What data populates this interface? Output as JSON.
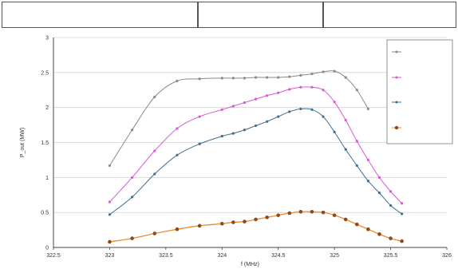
{
  "notes": {
    "left": "",
    "middle": "",
    "right": ""
  },
  "colors": {
    "s1": "#8a8a8a",
    "s2": "#d65ad6",
    "s3": "#3f6f8f",
    "s4": "#8b4a1f",
    "s4_line": "#f08a2a",
    "grid": "#d2d2d2",
    "axis": "#444444",
    "background": "#ffffff"
  },
  "chart_data": {
    "type": "line",
    "xlabel": "f (MHz)",
    "ylabel": "P_out (MW)",
    "xlim": [
      322.5,
      326
    ],
    "ylim": [
      0,
      3
    ],
    "xticks": [
      "322.5",
      "323",
      "323.5",
      "324",
      "324.5",
      "325",
      "325.5",
      "326"
    ],
    "yticks": [
      "0",
      "0.5",
      "1",
      "1.5",
      "2",
      "2.5",
      "3"
    ],
    "grid": "horizontal",
    "legend_position": "top-right",
    "series": [
      {
        "name": "",
        "x": [
          323,
          323.2,
          323.4,
          323.6,
          323.8,
          324,
          324.1,
          324.2,
          324.3,
          324.4,
          324.5,
          324.6,
          324.7,
          324.8,
          324.9,
          325,
          325.1,
          325.2,
          325.3
        ],
        "y": [
          1.17,
          1.68,
          2.15,
          2.38,
          2.41,
          2.42,
          2.42,
          2.42,
          2.43,
          2.43,
          2.43,
          2.44,
          2.46,
          2.48,
          2.51,
          2.52,
          2.43,
          2.25,
          1.98
        ]
      },
      {
        "name": "",
        "x": [
          323,
          323.2,
          323.4,
          323.6,
          323.8,
          324,
          324.1,
          324.2,
          324.3,
          324.4,
          324.5,
          324.6,
          324.7,
          324.8,
          324.9,
          325,
          325.1,
          325.2,
          325.3,
          325.4,
          325.5,
          325.6
        ],
        "y": [
          0.65,
          1.0,
          1.38,
          1.7,
          1.87,
          1.97,
          2.02,
          2.07,
          2.12,
          2.17,
          2.21,
          2.26,
          2.29,
          2.29,
          2.25,
          2.08,
          1.82,
          1.52,
          1.25,
          1.0,
          0.8,
          0.63
        ]
      },
      {
        "name": "",
        "x": [
          323,
          323.2,
          323.4,
          323.6,
          323.8,
          324,
          324.1,
          324.2,
          324.3,
          324.4,
          324.5,
          324.6,
          324.7,
          324.8,
          324.9,
          325,
          325.1,
          325.2,
          325.3,
          325.4,
          325.5,
          325.6
        ],
        "y": [
          0.47,
          0.72,
          1.05,
          1.32,
          1.48,
          1.59,
          1.63,
          1.68,
          1.74,
          1.8,
          1.87,
          1.94,
          1.98,
          1.97,
          1.87,
          1.65,
          1.4,
          1.17,
          0.95,
          0.78,
          0.6,
          0.48
        ]
      },
      {
        "name": "",
        "x": [
          323,
          323.2,
          323.4,
          323.6,
          323.8,
          324,
          324.1,
          324.2,
          324.3,
          324.4,
          324.5,
          324.6,
          324.7,
          324.8,
          324.9,
          325,
          325.1,
          325.2,
          325.3,
          325.4,
          325.5,
          325.6
        ],
        "y": [
          0.08,
          0.13,
          0.2,
          0.26,
          0.31,
          0.34,
          0.36,
          0.37,
          0.4,
          0.43,
          0.46,
          0.49,
          0.51,
          0.51,
          0.5,
          0.46,
          0.4,
          0.33,
          0.26,
          0.19,
          0.13,
          0.09
        ]
      }
    ]
  }
}
